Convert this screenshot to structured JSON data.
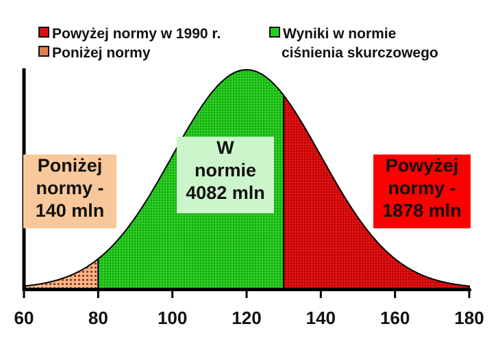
{
  "chart_data": {
    "type": "area",
    "distribution": "normal",
    "mean": 120,
    "sd": 20,
    "xlim": [
      60,
      180
    ],
    "x_ticks": [
      60,
      80,
      100,
      120,
      140,
      160,
      180
    ],
    "regions": [
      {
        "name": "Poniżej normy",
        "from": 60,
        "to": 80,
        "color": "#e08050"
      },
      {
        "name": "Wyniki w normie ciśnienia skurczowego",
        "from": 80,
        "to": 130,
        "color": "#22cc22"
      },
      {
        "name": "Powyżej normy w 1990 r.",
        "from": 130,
        "to": 180,
        "color": "#dd1111"
      }
    ],
    "legend": [
      {
        "label": "Powyżej normy w 1990 r.",
        "color": "#dd1111"
      },
      {
        "label": "Wyniki w normie",
        "label2": "ciśnienia skurczowego",
        "color": "#22cc22"
      },
      {
        "label": "Poniżej normy",
        "color": "#e08050"
      }
    ],
    "annotations": [
      {
        "lines": [
          "Poniżej",
          "normy -",
          "140 mln"
        ],
        "bg": "#f9c89a"
      },
      {
        "lines": [
          "W",
          "normie",
          "4082 mln"
        ],
        "bg": "#ccf5cc"
      },
      {
        "lines": [
          "Powyżej",
          "normy -",
          "1878 mln"
        ],
        "bg": "#ff0000"
      }
    ]
  }
}
